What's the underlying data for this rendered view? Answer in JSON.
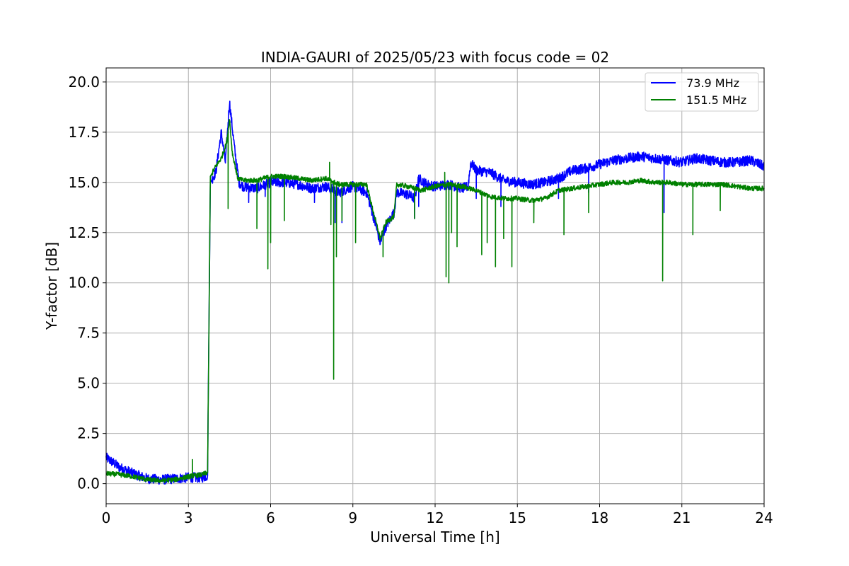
{
  "chart_data": {
    "type": "line",
    "title": "INDIA-GAURI of 2025/05/23 with focus code = 02",
    "xlabel": "Universal Time [h]",
    "ylabel": "Y-factor [dB]",
    "xlim": [
      0,
      24
    ],
    "ylim": [
      -1.0,
      20.7
    ],
    "xticks": [
      0,
      3,
      6,
      9,
      12,
      15,
      18,
      21,
      24
    ],
    "xtick_labels": [
      "0",
      "3",
      "6",
      "9",
      "12",
      "15",
      "18",
      "21",
      "24"
    ],
    "yticks": [
      0.0,
      2.5,
      5.0,
      7.5,
      10.0,
      12.5,
      15.0,
      17.5,
      20.0
    ],
    "ytick_labels": [
      "0.0",
      "2.5",
      "5.0",
      "7.5",
      "10.0",
      "12.5",
      "15.0",
      "17.5",
      "20.0"
    ],
    "grid": true,
    "legend_position": "top-right",
    "series": [
      {
        "name": " 73.9 MHz",
        "color": "#0000ff",
        "noise": 0.25,
        "points": [
          [
            0,
            1.3
          ],
          [
            0.5,
            0.8
          ],
          [
            1.0,
            0.5
          ],
          [
            1.5,
            0.25
          ],
          [
            2.0,
            0.2
          ],
          [
            2.5,
            0.25
          ],
          [
            3.0,
            0.3
          ],
          [
            3.5,
            0.3
          ],
          [
            3.7,
            0.4
          ],
          [
            3.75,
            7.8
          ],
          [
            3.8,
            15.0
          ],
          [
            4.0,
            15.5
          ],
          [
            4.2,
            17.5
          ],
          [
            4.35,
            16.0
          ],
          [
            4.5,
            19.0
          ],
          [
            4.7,
            16.5
          ],
          [
            4.85,
            15.0
          ],
          [
            5.0,
            14.8
          ],
          [
            5.5,
            14.7
          ],
          [
            6.0,
            15.0
          ],
          [
            6.5,
            15.0
          ],
          [
            7.0,
            14.9
          ],
          [
            7.5,
            14.7
          ],
          [
            8.0,
            14.8
          ],
          [
            8.5,
            14.5
          ],
          [
            9.0,
            14.8
          ],
          [
            9.5,
            14.5
          ],
          [
            9.75,
            13.3
          ],
          [
            10.0,
            12.0
          ],
          [
            10.2,
            12.8
          ],
          [
            10.5,
            13.5
          ],
          [
            10.6,
            14.5
          ],
          [
            11.0,
            14.4
          ],
          [
            11.25,
            14.2
          ],
          [
            11.4,
            15.2
          ],
          [
            11.7,
            14.9
          ],
          [
            12.0,
            14.8
          ],
          [
            12.5,
            14.9
          ],
          [
            13.0,
            14.7
          ],
          [
            13.2,
            14.8
          ],
          [
            13.3,
            16.0
          ],
          [
            13.5,
            15.6
          ],
          [
            14.0,
            15.5
          ],
          [
            14.5,
            15.1
          ],
          [
            15.0,
            15.0
          ],
          [
            15.5,
            14.9
          ],
          [
            16.0,
            15.0
          ],
          [
            16.5,
            15.2
          ],
          [
            17.0,
            15.6
          ],
          [
            17.5,
            15.7
          ],
          [
            18.0,
            15.9
          ],
          [
            18.5,
            16.1
          ],
          [
            19.0,
            16.2
          ],
          [
            19.5,
            16.3
          ],
          [
            20.0,
            16.2
          ],
          [
            20.5,
            16.1
          ],
          [
            21.0,
            16.0
          ],
          [
            21.5,
            16.2
          ],
          [
            22.0,
            16.1
          ],
          [
            22.5,
            16.0
          ],
          [
            23.0,
            16.0
          ],
          [
            23.5,
            16.1
          ],
          [
            24.0,
            15.8
          ]
        ],
        "dips": [
          [
            5.2,
            14.0
          ],
          [
            5.8,
            14.3
          ],
          [
            7.6,
            14.0
          ],
          [
            8.35,
            13.0
          ],
          [
            8.6,
            13.0
          ],
          [
            11.25,
            13.2
          ],
          [
            11.4,
            13.8
          ],
          [
            13.5,
            14.2
          ],
          [
            14.4,
            13.8
          ],
          [
            16.5,
            14.2
          ],
          [
            17.6,
            14.5
          ],
          [
            20.35,
            13.5
          ]
        ]
      },
      {
        "name": "151.5 MHz",
        "color": "#008000",
        "noise": 0.12,
        "points": [
          [
            0,
            0.5
          ],
          [
            0.5,
            0.45
          ],
          [
            1.0,
            0.35
          ],
          [
            1.5,
            0.2
          ],
          [
            2.0,
            0.15
          ],
          [
            2.5,
            0.2
          ],
          [
            3.0,
            0.35
          ],
          [
            3.5,
            0.45
          ],
          [
            3.7,
            0.55
          ],
          [
            3.75,
            7.5
          ],
          [
            3.8,
            15.3
          ],
          [
            4.0,
            15.8
          ],
          [
            4.2,
            16.2
          ],
          [
            4.4,
            17.0
          ],
          [
            4.5,
            18.2
          ],
          [
            4.6,
            16.5
          ],
          [
            4.8,
            15.2
          ],
          [
            5.0,
            15.1
          ],
          [
            5.5,
            15.1
          ],
          [
            6.0,
            15.3
          ],
          [
            6.5,
            15.3
          ],
          [
            7.0,
            15.2
          ],
          [
            7.5,
            15.1
          ],
          [
            8.0,
            15.2
          ],
          [
            8.5,
            14.9
          ],
          [
            9.0,
            14.9
          ],
          [
            9.5,
            14.9
          ],
          [
            9.75,
            13.5
          ],
          [
            10.0,
            12.2
          ],
          [
            10.2,
            13.0
          ],
          [
            10.5,
            13.3
          ],
          [
            10.6,
            14.9
          ],
          [
            11.0,
            14.8
          ],
          [
            11.5,
            14.6
          ],
          [
            12.0,
            14.8
          ],
          [
            12.5,
            14.9
          ],
          [
            13.0,
            14.8
          ],
          [
            13.5,
            14.6
          ],
          [
            14.0,
            14.3
          ],
          [
            14.5,
            14.2
          ],
          [
            15.0,
            14.2
          ],
          [
            15.5,
            14.1
          ],
          [
            16.0,
            14.2
          ],
          [
            16.5,
            14.6
          ],
          [
            17.0,
            14.7
          ],
          [
            17.5,
            14.8
          ],
          [
            18.0,
            14.9
          ],
          [
            18.5,
            15.0
          ],
          [
            19.0,
            15.0
          ],
          [
            19.5,
            15.1
          ],
          [
            20.0,
            15.0
          ],
          [
            20.5,
            15.0
          ],
          [
            21.0,
            14.9
          ],
          [
            21.5,
            14.9
          ],
          [
            22.0,
            14.9
          ],
          [
            22.5,
            14.9
          ],
          [
            23.0,
            14.8
          ],
          [
            23.5,
            14.7
          ],
          [
            24.0,
            14.7
          ]
        ],
        "dips": [
          [
            4.45,
            13.7
          ],
          [
            5.5,
            12.7
          ],
          [
            5.9,
            10.7
          ],
          [
            6.0,
            12.0
          ],
          [
            6.5,
            13.1
          ],
          [
            8.2,
            12.9
          ],
          [
            8.3,
            5.2
          ],
          [
            8.4,
            11.3
          ],
          [
            8.6,
            13.1
          ],
          [
            9.1,
            12.0
          ],
          [
            10.1,
            11.3
          ],
          [
            11.25,
            13.2
          ],
          [
            12.4,
            10.3
          ],
          [
            12.5,
            10.0
          ],
          [
            12.6,
            12.5
          ],
          [
            12.8,
            11.8
          ],
          [
            13.7,
            11.4
          ],
          [
            13.9,
            12.0
          ],
          [
            14.2,
            10.8
          ],
          [
            14.5,
            12.2
          ],
          [
            14.8,
            10.8
          ],
          [
            15.6,
            13.0
          ],
          [
            16.7,
            12.4
          ],
          [
            17.6,
            13.5
          ],
          [
            20.3,
            10.1
          ],
          [
            21.4,
            12.4
          ],
          [
            22.4,
            13.6
          ]
        ],
        "spikes": [
          [
            8.15,
            16.0
          ],
          [
            12.35,
            15.5
          ],
          [
            3.15,
            1.2
          ]
        ]
      }
    ]
  }
}
